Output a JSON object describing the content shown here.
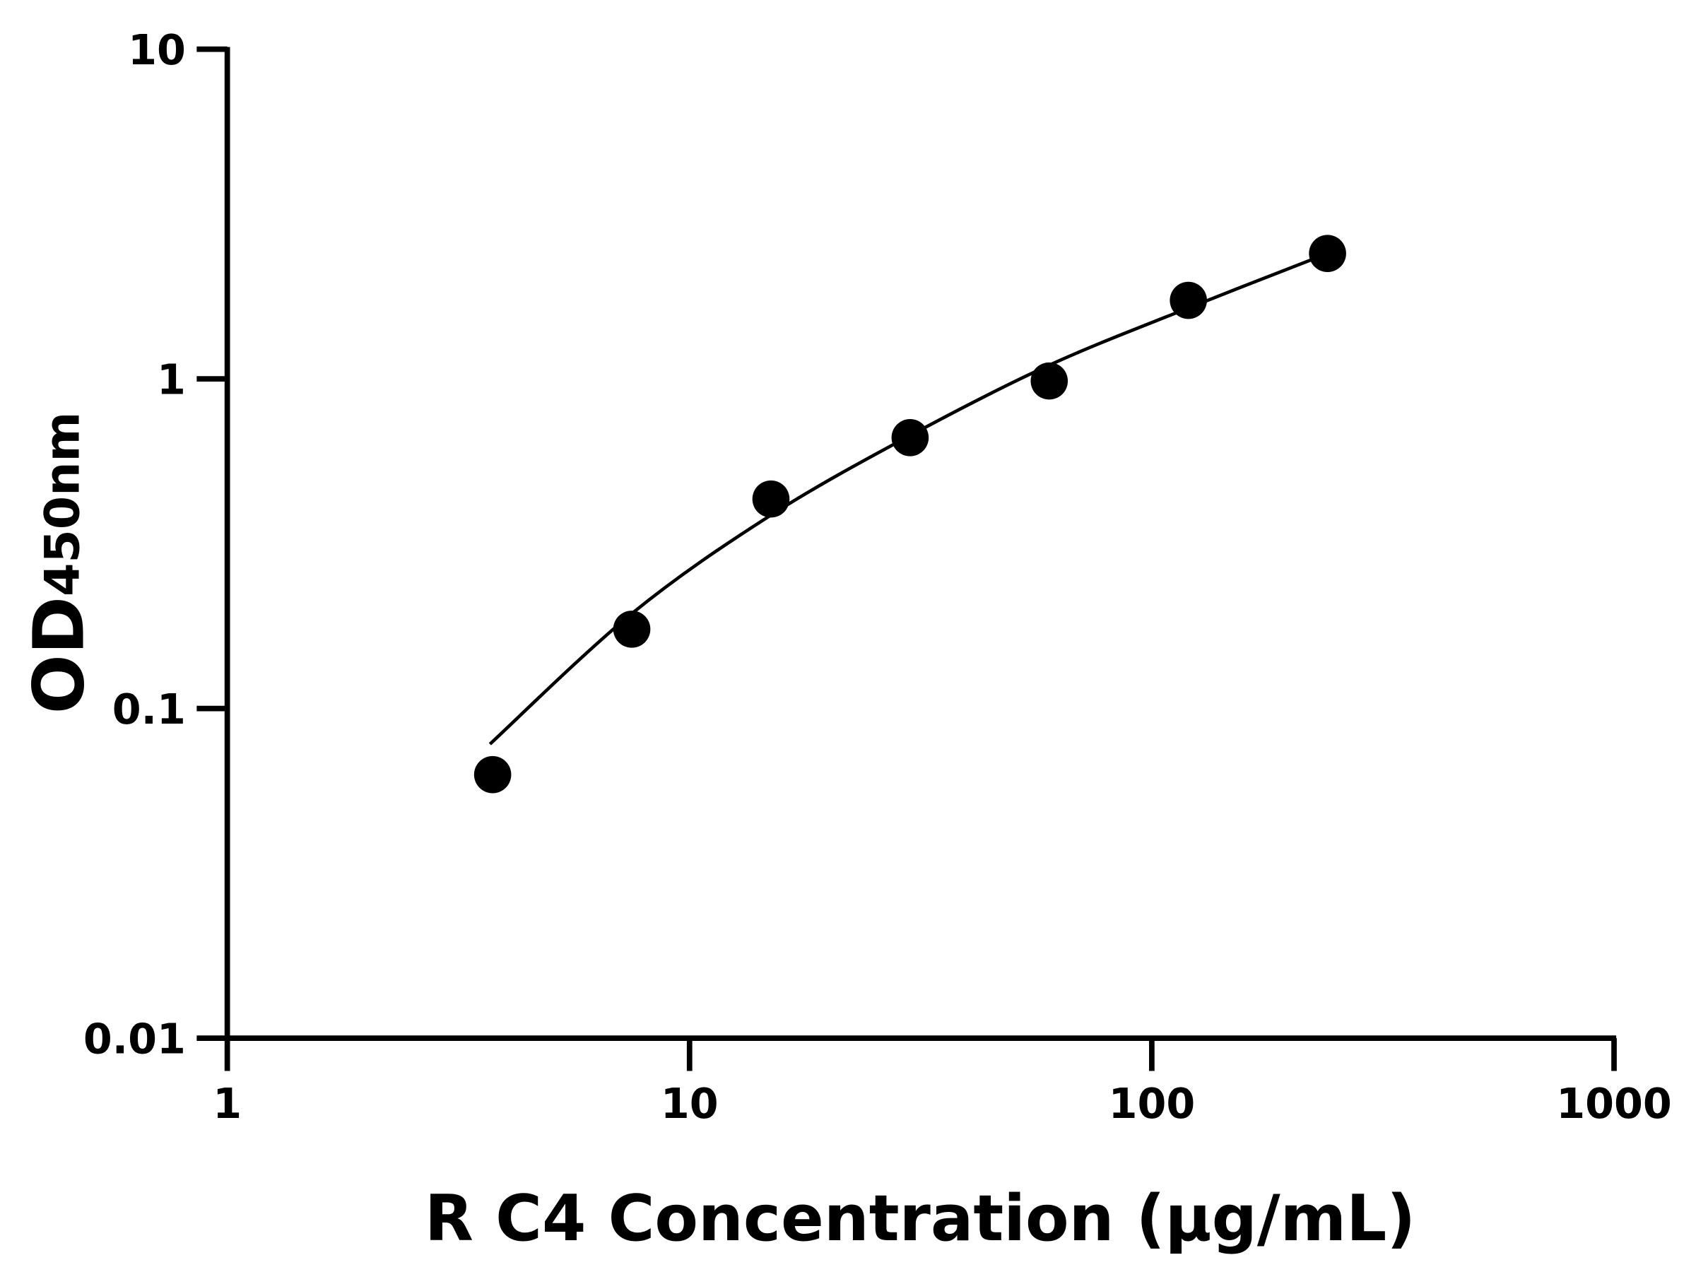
{
  "chart_data": {
    "type": "scatter",
    "title": "",
    "xlabel": "R C4 Concentration (µg/mL)",
    "ylabel_main": "OD",
    "ylabel_sub": "450nm",
    "x_scale": "log",
    "y_scale": "log",
    "xlim": [
      1,
      1000
    ],
    "ylim": [
      0.01,
      10
    ],
    "x_ticks": [
      "1",
      "10",
      "100",
      "1000"
    ],
    "y_ticks": [
      "0.01",
      "0.1",
      "1",
      "10"
    ],
    "grid": false,
    "legend": "none",
    "series": [
      {
        "kind": "points",
        "x": [
          3.75,
          7.5,
          15,
          30,
          60,
          120,
          240
        ],
        "y": [
          0.063,
          0.174,
          0.432,
          0.663,
          0.985,
          1.73,
          2.4
        ]
      },
      {
        "kind": "fit-curve",
        "x": [
          3.7,
          7.5,
          15,
          30,
          60,
          120,
          240
        ],
        "y": [
          0.078,
          0.194,
          0.386,
          0.673,
          1.1,
          1.64,
          2.4
        ]
      }
    ],
    "colors": {
      "axis": "#000000",
      "points": "#000000",
      "curve": "#000000"
    }
  }
}
